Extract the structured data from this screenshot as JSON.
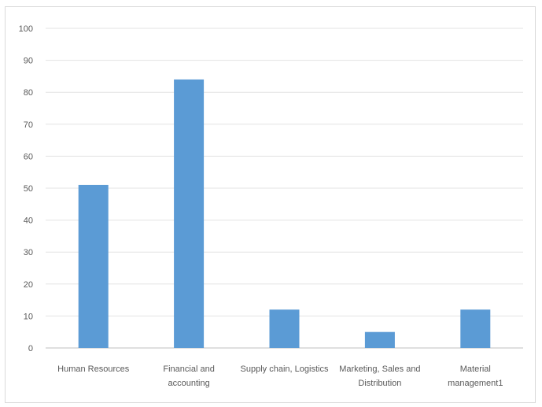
{
  "chart_data": {
    "type": "bar",
    "title": "",
    "xlabel": "",
    "ylabel": "",
    "ylim": [
      0,
      100
    ],
    "yticks": [
      0,
      10,
      20,
      30,
      40,
      50,
      60,
      70,
      80,
      90,
      100
    ],
    "grid": true,
    "legend": "none",
    "bar_color": "#5b9bd5",
    "categories": [
      [
        "Human Resources"
      ],
      [
        "Financial and",
        "accounting"
      ],
      [
        "Supply chain, Logistics"
      ],
      [
        "Marketing, Sales and",
        "Distribution"
      ],
      [
        "Material",
        "management1"
      ]
    ],
    "values": [
      51,
      84,
      12,
      5,
      12
    ]
  }
}
